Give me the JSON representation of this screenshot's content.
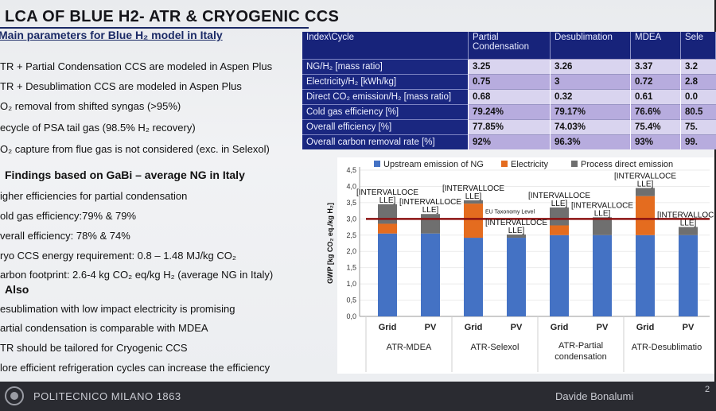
{
  "slide": {
    "title": "LCA OF BLUE H2- ATR & CRYOGENIC CCS",
    "subtitle": "Main parameters for Blue H₂ model in Italy",
    "left_lines": [
      "TR + Partial Condensation CCS are modeled in Aspen Plus",
      "TR + Desublimation CCS are modeled in Aspen Plus",
      "O₂ removal from shifted syngas (>95%)",
      "ecycle of PSA tail gas (98.5% H₂ recovery)",
      "O₂ capture from flue gas is not considered (exc. in Selexol)"
    ],
    "findings_heading": "Findings based on GaBi – average NG in Italy",
    "finding_lines": [
      "igher efficiencies for partial condensation",
      "old gas efficiency:79% & 79%",
      "verall efficiency: 78% & 74%",
      "ryo CCS energy requirement:  0.8 – 1.48 MJ/kg  CO₂",
      "arbon footprint: 2.6-4 kg CO₂ eq/kg H₂ (average NG in Italy)"
    ],
    "also_heading": "Also",
    "also_lines": [
      "esublimation with low impact electricity is promising",
      "artial condensation is comparable with MDEA",
      "TR should be tailored for Cryogenic CCS",
      "lore efficient refrigeration cycles can increase the efficiency"
    ]
  },
  "table": {
    "headers": [
      "Index\\Cycle",
      "Partial Condensation",
      "Desublimation",
      "MDEA",
      "Sele"
    ],
    "rows": [
      {
        "label": "NG/H₂ [mass ratio]",
        "values": [
          "3.25",
          "3.26",
          "3.37",
          "3.2"
        ]
      },
      {
        "label": "Electricity/H₂ [kWh/kg]",
        "values": [
          "0.75",
          "3",
          "0.72",
          "2.8"
        ]
      },
      {
        "label": "Direct CO₂ emission/H₂ [mass ratio]",
        "values": [
          "0.68",
          "0.32",
          "0.61",
          "0.0"
        ]
      },
      {
        "label": "Cold gas efficiency [%]",
        "values": [
          "79.24%",
          "79.17%",
          "76.6%",
          "80.5"
        ]
      },
      {
        "label": "Overall efficiency [%]",
        "values": [
          "77.85%",
          "74.03%",
          "75.4%",
          "75."
        ]
      },
      {
        "label": "Overall carbon removal rate [%]",
        "values": [
          "92%",
          "96.3%",
          "93%",
          "99."
        ]
      }
    ]
  },
  "chart_data": {
    "type": "bar",
    "stacked": true,
    "ylabel": "GWP [kg CO₂ eq./kg H₂]",
    "ylim": [
      0,
      4.5
    ],
    "yticks": [
      "0,0",
      "0,5",
      "1,0",
      "1,5",
      "2,0",
      "2,5",
      "3,0",
      "3,5",
      "4,0",
      "4,5"
    ],
    "categories": [
      "Grid",
      "PV",
      "Grid",
      "PV",
      "Grid",
      "PV",
      "Grid",
      "PV"
    ],
    "groups": [
      "ATR-MDEA",
      "ATR-Selexol",
      "ATR-Partial condensation",
      "ATR-Desublimatio"
    ],
    "series": [
      {
        "name": "Upstream emission of NG",
        "color": "#4472c4",
        "values": [
          2.55,
          2.55,
          2.42,
          2.42,
          2.5,
          2.5,
          2.5,
          2.5
        ]
      },
      {
        "name": "Electricity",
        "color": "#e46c1f",
        "values": [
          0.3,
          0.0,
          1.05,
          0.0,
          0.3,
          0.0,
          1.2,
          0.0
        ]
      },
      {
        "name": "Process direct emission",
        "color": "#6f6f6f",
        "values": [
          0.6,
          0.6,
          0.1,
          0.1,
          0.55,
          0.55,
          0.25,
          0.25
        ]
      }
    ],
    "data_labels": [
      {
        "text": "[INTERVALLOCE LLE]",
        "bar": 0
      },
      {
        "text": "[INTERVALLOCE LLE]",
        "bar": 1
      },
      {
        "text": "[INTERVALLOCE LLE]",
        "bar": 2
      },
      {
        "text": "[INTERVALLOCE LLE]",
        "bar": 3
      },
      {
        "text": "[INTERVALLOCE LLE]",
        "bar": 4
      },
      {
        "text": "[INTERVALLOCE LLE]",
        "bar": 5
      },
      {
        "text": "[INTERVALLOCE LLE]",
        "bar": 6
      },
      {
        "text": "[INTERVALLOCE LLE]",
        "bar": 7
      }
    ],
    "reference_line": {
      "value": 3.0,
      "label": "EU Taxonomy Level",
      "color": "#8b1010"
    },
    "legend_placement": "top"
  },
  "footer": {
    "institution": "POLITECNICO MILANO 1863",
    "author": "Davide Bonalumi",
    "page": "2"
  }
}
